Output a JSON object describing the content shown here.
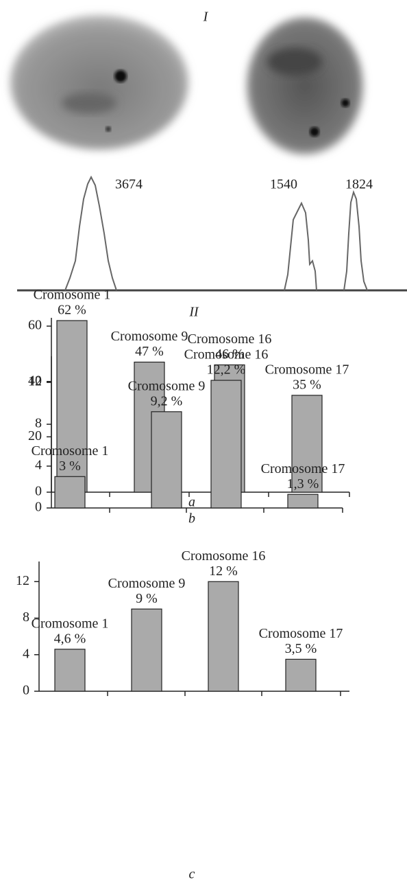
{
  "panel_1": {
    "label": "I",
    "peak_labels": [
      3674,
      1540,
      1824
    ]
  },
  "panel_2": {
    "label": "II"
  },
  "chart_data": [
    {
      "type": "bar",
      "caption": "a",
      "categories": [
        "Cromosome 1",
        "Cromosome 9",
        "Cromosome 16",
        "Cromosome 17"
      ],
      "values": [
        62,
        47,
        46,
        35
      ],
      "value_labels": [
        "62 %",
        "47 %",
        "46 %",
        "35 %"
      ],
      "color": "#aaaaaa",
      "ylim": [
        0,
        63
      ],
      "yticks": [
        0,
        20,
        40,
        60
      ]
    },
    {
      "type": "bar",
      "caption": "b",
      "categories": [
        "Cromosome 1",
        "Cromosome 9",
        "Cromosome 16",
        "Cromosome 17"
      ],
      "values": [
        3,
        9.2,
        12.2,
        1.3
      ],
      "value_labels": [
        "3 %",
        "9,2 %",
        "12,2 %",
        "1,3 %"
      ],
      "color": "#aaaaaa",
      "ylim": [
        0,
        14.5
      ],
      "yticks": [
        0,
        4,
        8,
        12
      ]
    },
    {
      "type": "bar",
      "caption": "c",
      "categories": [
        "Cromosome 1",
        "Cromosome 9",
        "Cromosome 16",
        "Cromosome 17"
      ],
      "values": [
        4.6,
        9,
        12,
        3.5
      ],
      "value_labels": [
        "4,6 %",
        "9 %",
        "12 %",
        "3,5 %"
      ],
      "color": "#aaaaaa",
      "ylim": [
        0,
        14.2
      ],
      "yticks": [
        0,
        4,
        8,
        12
      ]
    }
  ]
}
